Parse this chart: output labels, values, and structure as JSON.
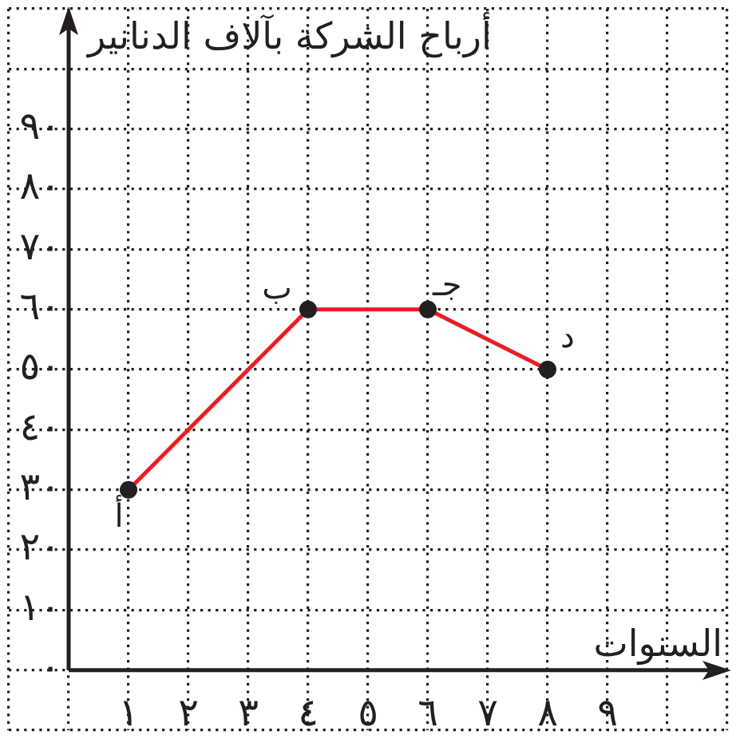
{
  "chart_data": {
    "type": "line",
    "xlabel": "السنوات",
    "ylabel": "أرباح الشركة بآلاف الدنانير",
    "x": [
      1,
      4,
      6,
      8
    ],
    "series": [
      {
        "color": "#ed1c24",
        "values": [
          30,
          60,
          60,
          50
        ]
      }
    ],
    "xlim": [
      -1,
      11
    ],
    "xticks": [
      {
        "value": -1,
        "label": null
      },
      {
        "value": 0,
        "label": null
      },
      {
        "value": 1,
        "label": "١"
      },
      {
        "value": 2,
        "label": "٢"
      },
      {
        "value": 3,
        "label": "٣"
      },
      {
        "value": 4,
        "label": "٤"
      },
      {
        "value": 5,
        "label": "٥"
      },
      {
        "value": 6,
        "label": "٦"
      },
      {
        "value": 7,
        "label": "٧"
      },
      {
        "value": 8,
        "label": "٨"
      },
      {
        "value": 9,
        "label": "٩"
      },
      {
        "value": 10,
        "label": null
      },
      {
        "value": 11,
        "label": null
      }
    ],
    "ylim": [
      -10,
      110
    ],
    "yticks": [
      {
        "value": -10,
        "label": null
      },
      {
        "value": 0,
        "label": "٠"
      },
      {
        "value": 10,
        "label": "١٠"
      },
      {
        "value": 20,
        "label": "٢٠"
      },
      {
        "value": 30,
        "label": "٣٠"
      },
      {
        "value": 40,
        "label": "٤٠"
      },
      {
        "value": 50,
        "label": "٥٠"
      },
      {
        "value": 60,
        "label": "٦٠"
      },
      {
        "value": 70,
        "label": "٧٠"
      },
      {
        "value": 80,
        "label": "٨٠"
      },
      {
        "value": 90,
        "label": "٩٠"
      },
      {
        "value": 100,
        "label": null
      },
      {
        "value": 110,
        "label": null
      }
    ],
    "grid": true,
    "marker": "circle",
    "line_style": "solid",
    "annotations": [
      {
        "text": "أ",
        "x": 1,
        "y": 30
      },
      {
        "text": "ب",
        "x": 4,
        "y": 60
      },
      {
        "text": "جـ",
        "x": 6,
        "y": 60
      },
      {
        "text": "د",
        "x": 8,
        "y": 50
      }
    ]
  }
}
